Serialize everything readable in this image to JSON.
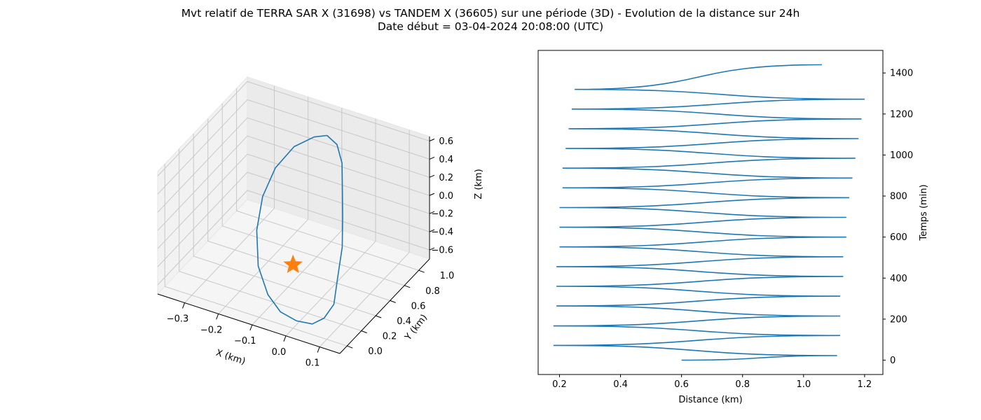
{
  "title": {
    "line1": "Mvt relatif de TERRA SAR X (31698) vs TANDEM X (36605) sur une période (3D) - Evolution de la distance sur 24h",
    "line2": "Date début = 03-04-2024 20:08:00 (UTC)"
  },
  "chart_data": [
    {
      "type": "line3d",
      "xlabel": "X (km)",
      "ylabel": "Y (km)",
      "zlabel": "Z (km)",
      "xlim": [
        -0.38,
        0.16
      ],
      "ylim": [
        -0.1,
        1.15
      ],
      "zlim": [
        -0.7,
        0.65
      ],
      "xticks": [
        "−0.3",
        "−0.2",
        "−0.1",
        "0.0",
        "0.1"
      ],
      "yticks": [
        "0.0",
        "0.2",
        "0.4",
        "0.6",
        "0.8",
        "1.0"
      ],
      "zticks": [
        "0.6",
        "0.4",
        "0.2",
        "0.0",
        "−0.2",
        "−0.4",
        "−0.6"
      ],
      "grid": true,
      "series": [
        {
          "color": "#1f77b4",
          "points": [
            [
              -0.08,
              0.85,
              0.62
            ],
            [
              -0.04,
              0.8,
              0.61
            ],
            [
              -0.01,
              0.73,
              0.5
            ],
            [
              0.01,
              0.64,
              0.33
            ],
            [
              0.03,
              0.55,
              0.1
            ],
            [
              0.05,
              0.45,
              -0.12
            ],
            [
              0.06,
              0.34,
              -0.35
            ],
            [
              0.07,
              0.24,
              -0.55
            ],
            [
              0.06,
              0.15,
              -0.64
            ],
            [
              0.04,
              0.08,
              -0.67
            ],
            [
              0.0,
              0.05,
              -0.66
            ],
            [
              -0.05,
              0.06,
              -0.63
            ],
            [
              -0.1,
              0.12,
              -0.55
            ],
            [
              -0.15,
              0.22,
              -0.38
            ],
            [
              -0.18,
              0.34,
              -0.12
            ],
            [
              -0.19,
              0.47,
              0.13
            ],
            [
              -0.18,
              0.6,
              0.35
            ],
            [
              -0.15,
              0.72,
              0.52
            ],
            [
              -0.11,
              0.81,
              0.6
            ],
            [
              -0.08,
              0.85,
              0.62
            ]
          ]
        },
        {
          "marker": "star",
          "color": "#ff7f0e",
          "points": [
            [
              0.0,
              0.0,
              0.0
            ]
          ]
        }
      ]
    },
    {
      "type": "line",
      "xlabel": "Distance (km)",
      "ylabel": "Temps (min)",
      "xlim": [
        0.13,
        1.26
      ],
      "ylim": [
        -70,
        1510
      ],
      "xticks": [
        "0.2",
        "0.4",
        "0.6",
        "0.8",
        "1.0",
        "1.2"
      ],
      "xtick_values": [
        0.2,
        0.4,
        0.6,
        0.8,
        1.0,
        1.2
      ],
      "yticks": [
        "0",
        "200",
        "400",
        "600",
        "800",
        "1000",
        "1200",
        "1400"
      ],
      "ytick_values": [
        0,
        200,
        400,
        600,
        800,
        1000,
        1200,
        1400
      ],
      "ylabel_position": "right",
      "series": [
        {
          "color": "#1f77b4",
          "x": [
            0.6,
            1.11,
            0.18,
            1.12,
            0.18,
            1.12,
            0.19,
            1.12,
            0.19,
            1.13,
            0.19,
            1.13,
            0.2,
            1.14,
            0.2,
            1.14,
            0.2,
            1.15,
            0.21,
            1.16,
            0.21,
            1.17,
            0.22,
            1.18,
            0.23,
            1.19,
            0.24,
            1.2,
            0.25,
            1.06
          ],
          "y": [
            0,
            22,
            72,
            120,
            167,
            215,
            264,
            312,
            360,
            408,
            456,
            504,
            552,
            600,
            648,
            696,
            744,
            792,
            840,
            888,
            936,
            984,
            1032,
            1080,
            1128,
            1176,
            1224,
            1272,
            1320,
            1440
          ]
        }
      ]
    }
  ]
}
